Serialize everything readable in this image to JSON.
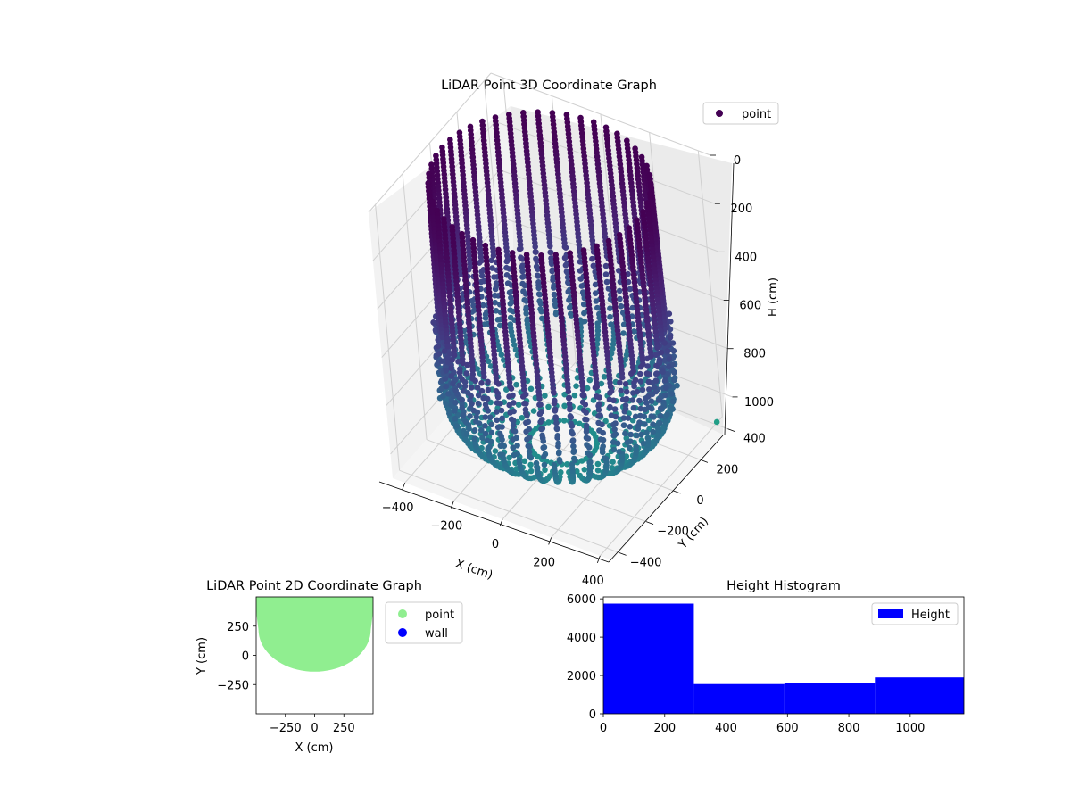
{
  "chart_data": [
    {
      "type": "scatter3d",
      "title": "LiDAR Point 3D Coordinate Graph",
      "xlabel": "X (cm)",
      "ylabel": "Y (cm)",
      "zlabel": "H (cm)",
      "x_ticks": [
        "−400",
        "−200",
        "0",
        "200",
        "400"
      ],
      "y_ticks": [
        "−400",
        "−200",
        "0",
        "200",
        "400"
      ],
      "z_ticks": [
        "0",
        "200",
        "400",
        "600",
        "800",
        "1000"
      ],
      "xlim": [
        -450,
        450
      ],
      "ylim": [
        -450,
        450
      ],
      "zlim": [
        1100,
        0
      ],
      "colormap": "viridis",
      "legend": [
        {
          "label": "point",
          "color": "#440154"
        }
      ],
      "legend_position": "top-right",
      "grid": true,
      "shape": {
        "radius_at_top_cm": 420,
        "radius_at_700cm": 430,
        "bottom_tip_height_cm": 1080,
        "outlier": {
          "x": 470,
          "y": 300,
          "h": 1000
        }
      }
    },
    {
      "type": "scatter",
      "title": "LiDAR Point 2D Coordinate Graph",
      "xlabel": "X (cm)",
      "ylabel": "Y (cm)",
      "x_ticks": [
        "−250",
        "0",
        "250"
      ],
      "y_ticks": [
        "250",
        "0",
        "−250"
      ],
      "xlim": [
        -500,
        500
      ],
      "ylim": [
        -500,
        500
      ],
      "series": [
        {
          "name": "point",
          "color": "#90ee90",
          "region": {
            "y_max": 500,
            "bottom_arc_y_min": -140
          }
        },
        {
          "name": "wall",
          "color": "#0000ff",
          "region": null
        }
      ],
      "legend_position": "outside-right"
    },
    {
      "type": "bar",
      "title": "Height Histogram",
      "xlabel": "",
      "ylabel": "",
      "x_ticks": [
        "0",
        "200",
        "400",
        "600",
        "800",
        "1000"
      ],
      "y_ticks": [
        "0",
        "2000",
        "4000",
        "6000"
      ],
      "xlim": [
        0,
        1175
      ],
      "ylim": [
        0,
        6100
      ],
      "bins": [
        {
          "x0": 0,
          "x1": 295,
          "count": 5750
        },
        {
          "x0": 295,
          "x1": 590,
          "count": 1550
        },
        {
          "x0": 590,
          "x1": 885,
          "count": 1600
        },
        {
          "x0": 885,
          "x1": 1175,
          "count": 1900
        }
      ],
      "series": [
        {
          "name": "Height",
          "color": "#0000ff"
        }
      ],
      "legend_position": "top-right"
    }
  ]
}
